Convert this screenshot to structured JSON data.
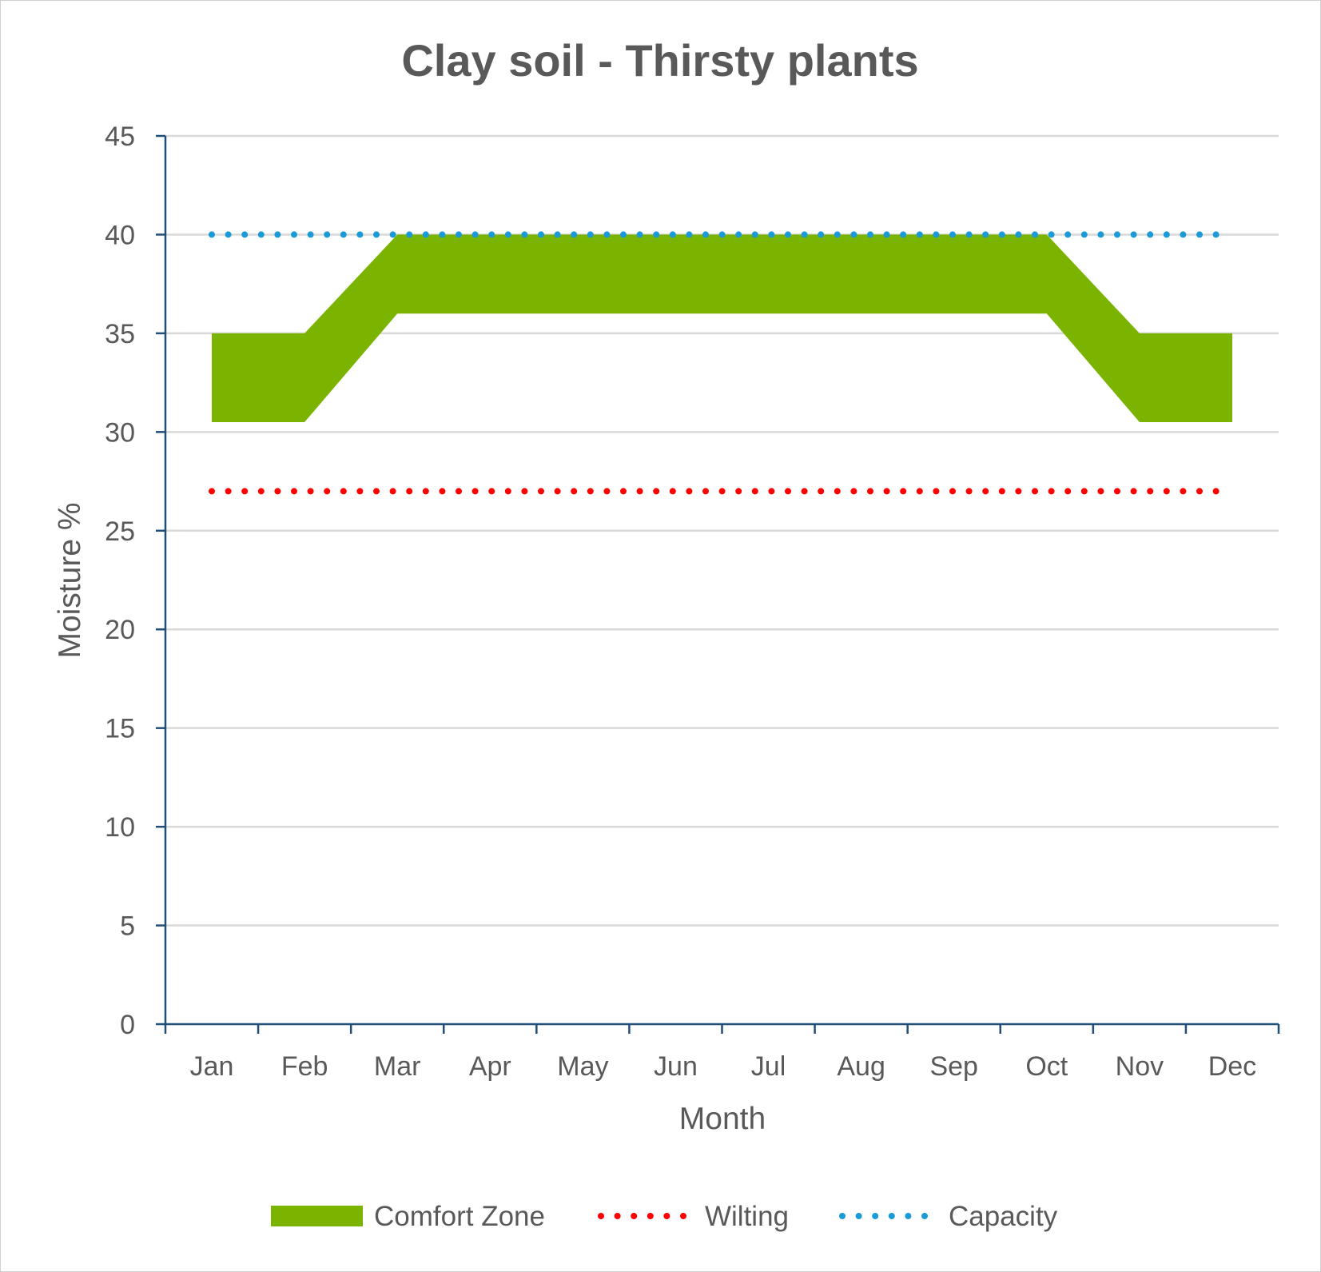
{
  "chart_data": {
    "type": "area",
    "title": "Clay soil - Thirsty plants",
    "xlabel": "Month",
    "ylabel": "Moisture %",
    "categories": [
      "Jan",
      "Feb",
      "Mar",
      "Apr",
      "May",
      "Jun",
      "Jul",
      "Aug",
      "Sep",
      "Oct",
      "Nov",
      "Dec"
    ],
    "ylim": [
      0,
      45
    ],
    "yticks": [
      "0",
      "5",
      "10",
      "15",
      "20",
      "25",
      "30",
      "35",
      "40",
      "45"
    ],
    "grid": true,
    "legend_position": "bottom",
    "series": [
      {
        "name": "Comfort Zone",
        "kind": "band",
        "color": "#7ab300",
        "lower": [
          30.5,
          30.5,
          36,
          36,
          36,
          36,
          36,
          36,
          36,
          36,
          30.5,
          30.5
        ],
        "upper": [
          35,
          35,
          40,
          40,
          40,
          40,
          40,
          40,
          40,
          40,
          35,
          35
        ]
      },
      {
        "name": "Wilting",
        "kind": "dotted-line",
        "color": "#ff0000",
        "values": [
          27,
          27,
          27,
          27,
          27,
          27,
          27,
          27,
          27,
          27,
          27,
          27
        ]
      },
      {
        "name": "Capacity",
        "kind": "dotted-line",
        "color": "#1a9ad6",
        "values": [
          40,
          40,
          40,
          40,
          40,
          40,
          40,
          40,
          40,
          40,
          40,
          40
        ]
      }
    ]
  }
}
